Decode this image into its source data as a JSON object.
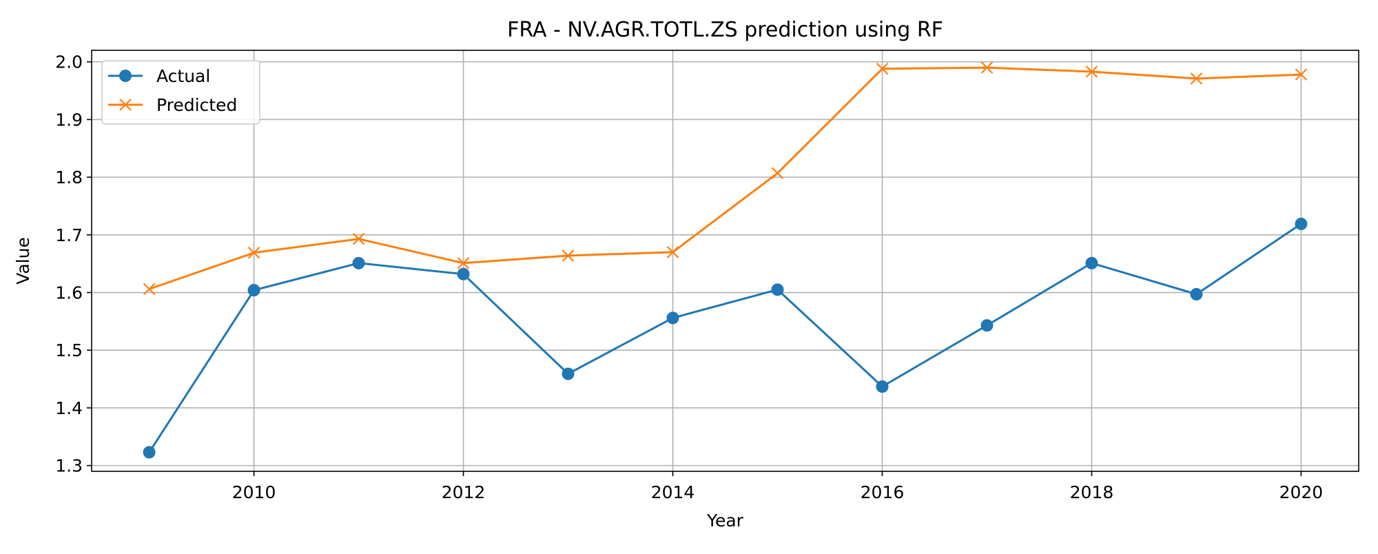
{
  "chart_data": {
    "type": "line",
    "title": "FRA - NV.AGR.TOTL.ZS prediction using RF",
    "xlabel": "Year",
    "ylabel": "Value",
    "x": [
      2009,
      2010,
      2011,
      2012,
      2013,
      2014,
      2015,
      2016,
      2017,
      2018,
      2019,
      2020
    ],
    "xlim": [
      2008.45,
      2020.55
    ],
    "ylim": [
      1.29,
      2.02
    ],
    "x_ticks": [
      2010,
      2012,
      2014,
      2016,
      2018,
      2020
    ],
    "y_ticks": [
      "1.3",
      "1.4",
      "1.5",
      "1.6",
      "1.7",
      "1.8",
      "1.9",
      "2.0"
    ],
    "grid": true,
    "legend_position": "upper left",
    "series": [
      {
        "name": "Actual",
        "color": "#1f77b4",
        "marker": "circle",
        "values": [
          1.323,
          1.604,
          1.651,
          1.632,
          1.459,
          1.556,
          1.605,
          1.437,
          1.543,
          1.651,
          1.597,
          1.719
        ]
      },
      {
        "name": "Predicted",
        "color": "#ff7f0e",
        "marker": "x",
        "values": [
          1.606,
          1.669,
          1.693,
          1.651,
          1.664,
          1.67,
          1.807,
          1.988,
          1.99,
          1.983,
          1.971,
          1.978
        ]
      }
    ]
  }
}
